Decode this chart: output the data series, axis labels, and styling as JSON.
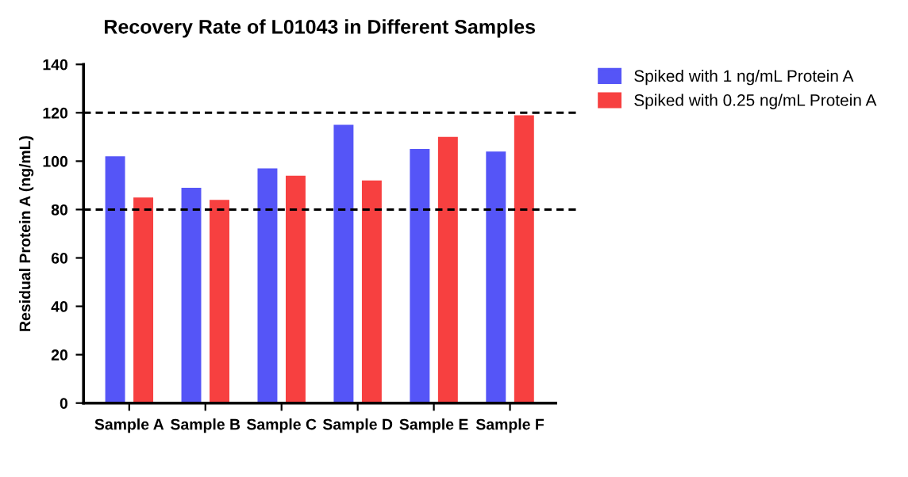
{
  "chart_data": {
    "type": "bar",
    "title": "Recovery Rate of L01043 in Different Samples",
    "ylabel": "Residual Protein A (ng/mL)",
    "categories": [
      "Sample A",
      "Sample B",
      "Sample C",
      "Sample D",
      "Sample E",
      "Sample F"
    ],
    "series": [
      {
        "name": "Spiked with 1 ng/mL Protein A",
        "color": "#5555f7",
        "values": [
          102,
          89,
          97,
          115,
          105,
          104
        ]
      },
      {
        "name": "Spiked with 0.25 ng/mL Protein A",
        "color": "#f74040",
        "values": [
          85,
          84,
          94,
          92,
          110,
          119
        ]
      }
    ],
    "ylim": [
      0,
      140
    ],
    "yticks": [
      0,
      20,
      40,
      60,
      80,
      100,
      120,
      140
    ],
    "ref_lines": [
      {
        "axis": "y",
        "value": 120,
        "color": "#000000",
        "line_style": "dashed"
      },
      {
        "axis": "y",
        "value": 80,
        "color": "#000000",
        "line_style": "dashed"
      }
    ],
    "grid": false,
    "legend": "top right"
  }
}
